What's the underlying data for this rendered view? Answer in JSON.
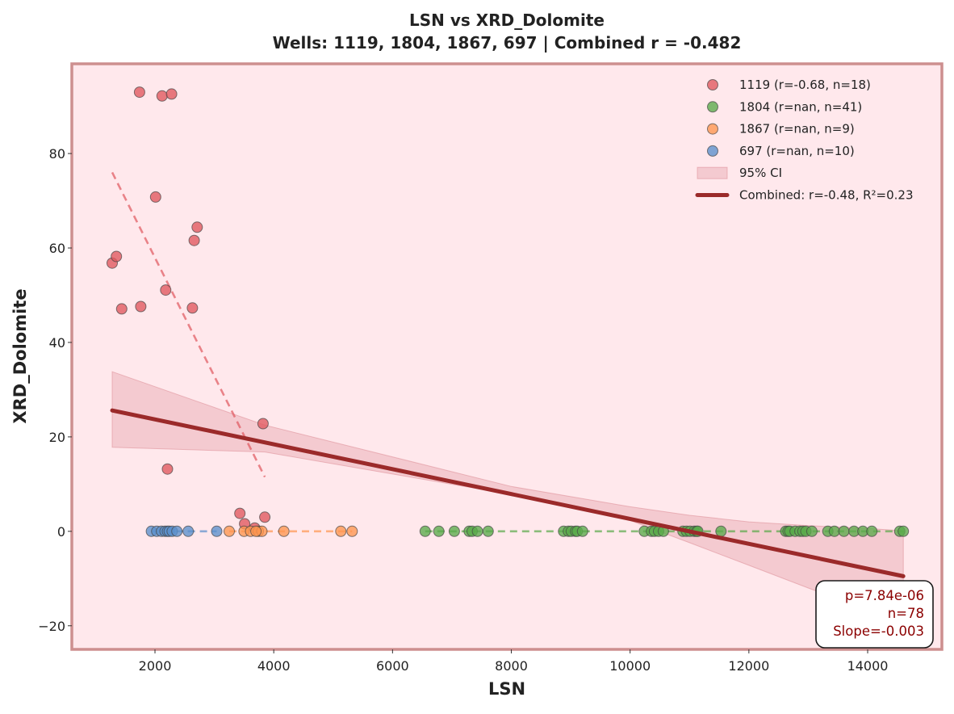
{
  "chart_data": {
    "type": "scatter",
    "title": "LSN vs XRD_Dolomite",
    "subtitle": "Wells: 1119, 1804, 1867, 697 | Combined r = -0.482",
    "xlabel": "LSN",
    "ylabel": "XRD_Dolomite",
    "xlim": [
      600,
      15250
    ],
    "ylim": [
      -25,
      99
    ],
    "x_ticks": [
      2000,
      4000,
      6000,
      8000,
      10000,
      12000,
      14000
    ],
    "x_tick_labels": [
      "2000",
      "4000",
      "6000",
      "8000",
      "10000",
      "12000",
      "14000"
    ],
    "y_ticks": [
      -20,
      0,
      20,
      40,
      60,
      80
    ],
    "y_tick_labels": [
      "−20",
      "0",
      "20",
      "40",
      "60",
      "80"
    ],
    "grid": false,
    "legend_position": "top-right",
    "colors": {
      "plot_background": "#ffe8ec",
      "plot_border": "#cd8f8f",
      "combined_line": "#9b2a2a",
      "ci_band": "#dc8c96"
    },
    "series": [
      {
        "name": "1119",
        "label": "1119 (r=-0.68, n=18)",
        "color": "#e0575e",
        "trend": {
          "x": [
            1280,
            3850
          ],
          "y": [
            76,
            11.5
          ]
        },
        "x": [
          1740,
          2120,
          2280,
          1280,
          1350,
          1440,
          1760,
          2010,
          2180,
          2630,
          2660,
          2710,
          2210,
          3820,
          3430,
          3510,
          3850,
          3680
        ],
        "y": [
          93,
          92.2,
          92.6,
          56.8,
          58.2,
          47.1,
          47.6,
          70.8,
          51.1,
          47.3,
          61.6,
          64.4,
          13.2,
          22.8,
          3.8,
          1.6,
          3.0,
          0.7
        ]
      },
      {
        "name": "1804",
        "label": "1804 (r=nan, n=41)",
        "color": "#5aaa4a",
        "trend": {
          "x": [
            6550,
            14620
          ],
          "y": [
            0,
            0
          ]
        },
        "x": [
          6550,
          6780,
          7040,
          7290,
          7340,
          7430,
          7610,
          8880,
          8960,
          9010,
          9080,
          9110,
          9200,
          10240,
          10360,
          10410,
          10480,
          10560,
          10890,
          10950,
          11010,
          11080,
          11120,
          11140,
          11530,
          12620,
          12660,
          12690,
          12780,
          12860,
          12910,
          12960,
          13060,
          13330,
          13440,
          13600,
          13770,
          13920,
          14070,
          14540,
          14600
        ],
        "y": [
          0,
          0,
          0,
          0,
          0,
          0,
          0,
          0,
          0,
          0,
          0,
          0,
          0,
          0,
          0,
          0,
          0,
          0,
          0,
          0,
          0,
          0,
          0,
          0,
          0,
          0,
          0,
          0,
          0,
          0,
          0,
          0,
          0,
          0,
          0,
          0,
          0,
          0,
          0,
          0,
          0
        ]
      },
      {
        "name": "1867",
        "label": "1867 (r=nan, n=9)",
        "color": "#ff9650",
        "trend": {
          "x": [
            3250,
            5320
          ],
          "y": [
            0,
            0
          ]
        },
        "x": [
          3250,
          3500,
          3610,
          3740,
          3800,
          4170,
          5130,
          5320,
          3700
        ],
        "y": [
          0,
          0,
          0,
          0,
          0,
          0,
          0,
          0,
          0
        ]
      },
      {
        "name": "697",
        "label": "697 (r=nan, n=10)",
        "color": "#5b8fcc",
        "trend": {
          "x": [
            1940,
            3040
          ],
          "y": [
            0,
            0
          ]
        },
        "x": [
          1940,
          2030,
          2110,
          2170,
          2210,
          2240,
          2290,
          2370,
          2560,
          3040
        ],
        "y": [
          0,
          0,
          0,
          0,
          0,
          0,
          0,
          0,
          0,
          0
        ]
      }
    ],
    "combined_fit": {
      "label": "Combined: r=-0.48, R²=0.23",
      "x": [
        1280,
        14600
      ],
      "y": [
        25.6,
        -9.5
      ]
    },
    "confidence_band": {
      "label": "95% CI",
      "x": [
        1280,
        3850,
        8000,
        10000,
        11000,
        12000,
        13000,
        14000,
        14600
      ],
      "upper": [
        33.8,
        22.5,
        9.5,
        5.2,
        3.4,
        2.0,
        1.2,
        0.6,
        0.1
      ],
      "lower": [
        17.8,
        16.8,
        7.8,
        2.3,
        -2.4,
        -7.2,
        -12.0,
        -16.6,
        -19.4
      ]
    },
    "stats_box": {
      "lines": [
        "p=7.84e-06",
        "n=78",
        "Slope=-0.003"
      ],
      "position": "bottom-right"
    }
  }
}
